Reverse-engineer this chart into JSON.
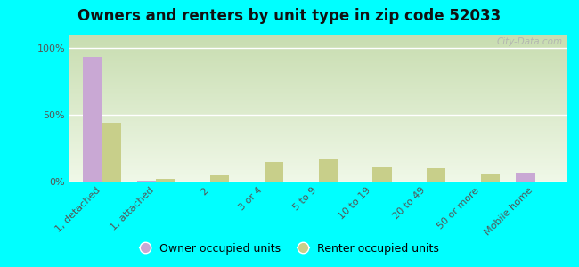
{
  "title": "Owners and renters by unit type in zip code 52033",
  "categories": [
    "1, detached",
    "1, attached",
    "2",
    "3 or 4",
    "5 to 9",
    "10 to 19",
    "20 to 49",
    "50 or more",
    "Mobile home"
  ],
  "owner_values": [
    93,
    1,
    0,
    0,
    0,
    0,
    0,
    0,
    7
  ],
  "renter_values": [
    44,
    2,
    5,
    15,
    17,
    11,
    10,
    6,
    0
  ],
  "owner_color": "#c9a8d4",
  "renter_color": "#c8cf8a",
  "background_color": "#00ffff",
  "grad_top_color": "#c8ddb0",
  "grad_bottom_color": "#f0f8e8",
  "ytick_values": [
    0,
    50,
    100
  ],
  "ylim": [
    0,
    110
  ],
  "bar_width": 0.35,
  "watermark": "City-Data.com",
  "owner_legend": "Owner occupied units",
  "renter_legend": "Renter occupied units",
  "title_fontsize": 12,
  "tick_fontsize": 8,
  "legend_fontsize": 9
}
